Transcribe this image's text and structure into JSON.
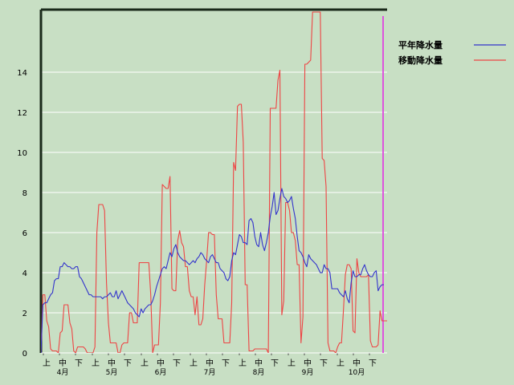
{
  "chart_data": {
    "type": "line",
    "title": "",
    "xlabel": "",
    "ylabel": "",
    "ylim": [
      0,
      17
    ],
    "grid": true,
    "legend_placement": "right",
    "y_tick_labels": [
      "0",
      "2",
      "4",
      "6",
      "8",
      "10",
      "12",
      "14"
    ],
    "period_labels": [
      "上",
      "中",
      "下"
    ],
    "month_labels": [
      "4月",
      "5月",
      "6月",
      "7月",
      "8月",
      "9月",
      "10月"
    ],
    "series": [
      {
        "name": "平年降水量",
        "color": "#3333cc",
        "values": [
          0,
          2.4,
          2.5,
          2.5,
          2.7,
          2.9,
          3,
          3.6,
          3.7,
          3.7,
          4.3,
          4.3,
          4.5,
          4.4,
          4.3,
          4.3,
          4.2,
          4.2,
          4.3,
          4.3,
          3.8,
          3.7,
          3.5,
          3.3,
          3.1,
          2.9,
          2.9,
          2.8,
          2.8,
          2.8,
          2.8,
          2.8,
          2.7,
          2.8,
          2.8,
          2.9,
          3,
          2.8,
          2.8,
          3.1,
          2.7,
          2.9,
          3.1,
          2.9,
          2.7,
          2.5,
          2.4,
          2.3,
          2.2,
          2.0,
          1.9,
          1.8,
          2.2,
          2.0,
          2.2,
          2.3,
          2.4,
          2.4,
          2.6,
          2.9,
          3.3,
          3.6,
          3.9,
          4.2,
          4.3,
          4.2,
          4.6,
          5,
          4.8,
          5.2,
          5.4,
          5,
          4.8,
          4.7,
          4.6,
          4.6,
          4.5,
          4.4,
          4.5,
          4.6,
          4.5,
          4.7,
          4.8,
          5,
          4.9,
          4.7,
          4.6,
          4.5,
          4.8,
          4.9,
          4.7,
          4.5,
          4.5,
          4.2,
          4.1,
          4.0,
          3.7,
          3.6,
          3.8,
          4.6,
          5.0,
          4.9,
          5.4,
          5.9,
          5.8,
          5.5,
          5.5,
          5.4,
          6.6,
          6.7,
          6.5,
          5.8,
          5.4,
          5.3,
          6.0,
          5.4,
          5.1,
          5.5,
          6.0,
          6.8,
          7.3,
          8.0,
          6.9,
          7.1,
          7.7,
          8.2,
          7.8,
          7.7,
          7.5,
          7.6,
          7.8,
          7.2,
          6.7,
          5.8,
          5.1,
          5.0,
          4.8,
          4.5,
          4.3,
          4.9,
          4.7,
          4.6,
          4.5,
          4.4,
          4.2,
          4.0,
          4.0,
          4.4,
          4.2,
          4.2,
          4.0,
          3.2,
          3.2,
          3.2,
          3.2,
          3.0,
          2.9,
          2.8,
          3.1,
          2.7,
          2.5,
          3.5,
          4.1,
          3.8,
          3.8,
          3.9,
          3.9,
          4.2,
          4.4,
          4.1,
          3.9,
          3.8,
          3.8,
          4.0,
          4.1,
          3.1,
          3.3,
          3.4,
          3.4
        ]
      },
      {
        "name": "移動降水量",
        "color": "#ee4444",
        "values": [
          0,
          2.9,
          2.9,
          1.6,
          1.3,
          0.2,
          0.1,
          0.1,
          0.1,
          0,
          1,
          1.1,
          2.4,
          2.4,
          2.4,
          1.5,
          1.2,
          0.1,
          0,
          0.3,
          0.3,
          0.3,
          0.3,
          0.2,
          0,
          0,
          0,
          0,
          0.3,
          6,
          7.4,
          7.4,
          7.4,
          7.1,
          3.5,
          1.5,
          0.5,
          0.5,
          0.5,
          0.5,
          0,
          0,
          0.4,
          0.5,
          0.5,
          0.5,
          2,
          2,
          1.5,
          1.5,
          1.5,
          4.5,
          4.5,
          4.5,
          4.5,
          4.5,
          4.5,
          2.9,
          0,
          0.4,
          0.4,
          0.4,
          2.5,
          8.4,
          8.3,
          8.2,
          8.2,
          8.8,
          3.2,
          3.1,
          3.1,
          5.6,
          6.1,
          5.5,
          5.3,
          4.3,
          4.3,
          3.1,
          2.8,
          2.8,
          1.9,
          2.8,
          1.4,
          1.4,
          1.7,
          3.4,
          4.6,
          6.0,
          6.0,
          5.9,
          5.9,
          2.9,
          1.7,
          1.7,
          1.7,
          0.5,
          0.5,
          0.5,
          0.5,
          2.5,
          9.5,
          9.1,
          12.3,
          12.4,
          12.4,
          10.5,
          3.4,
          3.4,
          0.1,
          0.1,
          0.1,
          0.2,
          0.2,
          0.2,
          0.2,
          0.2,
          0.2,
          0.2,
          0,
          12.2,
          12.2,
          12.2,
          12.2,
          13.6,
          14.1,
          1.9,
          2.6,
          7.5,
          7.5,
          7.1,
          6.0,
          6.0,
          5.6,
          4.4,
          4.4,
          0.5,
          1.8,
          14.4,
          14.4,
          14.5,
          14.6,
          17,
          17,
          17,
          17,
          17,
          9.7,
          9.6,
          8.3,
          0.5,
          0.1,
          0.1,
          0.1,
          0,
          0.3,
          0.5,
          0.5,
          2.1,
          3.9,
          4.4,
          4.4,
          4.2,
          1.1,
          1.0,
          4.7,
          4.0,
          3.8,
          3.8,
          3.8,
          3.8,
          3.9,
          0.6,
          0.3,
          0.3,
          0.3,
          0.4,
          2.1,
          1.6,
          1.6,
          1.6,
          1.6,
          4.4,
          4.4,
          3.5
        ]
      }
    ]
  }
}
